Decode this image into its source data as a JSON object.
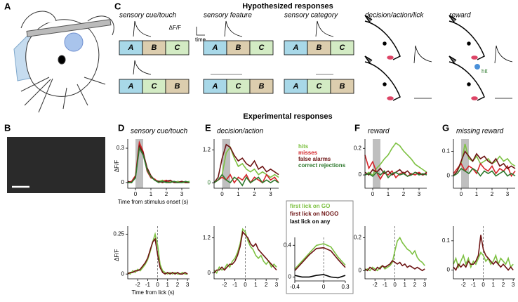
{
  "panels": [
    "A",
    "B",
    "C",
    "D",
    "E",
    "F",
    "G"
  ],
  "headings": {
    "hypothesized": "Hypothesized responses",
    "experimental": "Experimental responses"
  },
  "panel_c": {
    "columns": [
      "sensory cue/touch",
      "sensory feature",
      "sensory category",
      "decision/action/lick",
      "reward"
    ],
    "rows": [
      [
        "A",
        "B",
        "C"
      ],
      [
        "A",
        "C",
        "B"
      ]
    ],
    "dff": "ΔF/F",
    "time": "time",
    "hit": "hit"
  },
  "legend_title_series": [
    "hits",
    "misses",
    "false alarms",
    "correct rejections"
  ],
  "chart_data": [
    {
      "type": "line",
      "title": "sensory cue/touch",
      "ylabel": "ΔF/F",
      "xlabel": "Time from stimulus onset (s)",
      "xlim": [
        -0.5,
        3.5
      ],
      "ylim": [
        -0.05,
        0.38
      ],
      "xticks": [
        0,
        1,
        2,
        3
      ],
      "yticks": [
        0,
        0.3
      ],
      "shade": [
        0,
        0.5
      ],
      "x": [
        -0.5,
        -0.25,
        0,
        0.25,
        0.5,
        0.75,
        1,
        1.25,
        1.5,
        1.75,
        2,
        2.25,
        2.5,
        2.75,
        3,
        3.25,
        3.5
      ],
      "series": [
        {
          "color": "#7dc142",
          "values": [
            0,
            0,
            0.05,
            0.33,
            0.25,
            0.12,
            0.05,
            0.02,
            0.01,
            0.02,
            0,
            0.01,
            0,
            0.01,
            0,
            0,
            0.01
          ]
        },
        {
          "color": "#d4252a",
          "values": [
            0,
            0.01,
            0.06,
            0.35,
            0.27,
            0.1,
            0.04,
            0.03,
            0,
            0.01,
            0.02,
            0,
            0.01,
            0,
            0.01,
            0,
            0
          ]
        },
        {
          "color": "#6d1414",
          "values": [
            0.01,
            0,
            0.05,
            0.32,
            0.26,
            0.13,
            0.06,
            0.02,
            0.01,
            0,
            0.01,
            0.02,
            0,
            0,
            0.01,
            0,
            0
          ]
        },
        {
          "color": "#2f7a2e",
          "values": [
            0,
            0,
            0.04,
            0.3,
            0.24,
            0.11,
            0.05,
            0.02,
            0,
            0.01,
            0,
            0,
            0.01,
            0,
            0,
            0.01,
            0
          ]
        }
      ]
    },
    {
      "type": "line",
      "title": "decision/action",
      "xlim": [
        -0.5,
        3.5
      ],
      "ylim": [
        -0.2,
        1.6
      ],
      "xticks": [
        0,
        1,
        2,
        3
      ],
      "yticks": [
        0,
        1.2
      ],
      "shade": [
        0,
        0.5
      ],
      "x": [
        -0.5,
        -0.25,
        0,
        0.25,
        0.5,
        0.75,
        1,
        1.25,
        1.5,
        1.75,
        2,
        2.25,
        2.5,
        2.75,
        3,
        3.25,
        3.5
      ],
      "series": [
        {
          "name": "hits",
          "color": "#7dc142",
          "values": [
            0,
            0.1,
            0.3,
            1.1,
            1.3,
            0.9,
            0.6,
            0.7,
            0.5,
            0.4,
            0.5,
            0.3,
            0.4,
            0.3,
            0.2,
            0.3,
            0.2
          ]
        },
        {
          "name": "misses",
          "color": "#d4252a",
          "values": [
            0,
            0.1,
            0.2,
            0.1,
            0.3,
            0,
            0.2,
            0.1,
            0.3,
            0,
            0.2,
            0.1,
            0,
            0.3,
            0.1,
            0.2,
            0
          ]
        },
        {
          "name": "false alarms",
          "color": "#6d1414",
          "values": [
            0,
            0.2,
            0.9,
            1.4,
            1.3,
            1.0,
            0.8,
            0.9,
            0.7,
            0.6,
            0.8,
            0.5,
            0.6,
            0.4,
            0.5,
            0.4,
            0.3
          ]
        },
        {
          "name": "correct rejections",
          "color": "#2f7a2e",
          "values": [
            0,
            0.1,
            0.3,
            0.1,
            0,
            0.2,
            0.1,
            -0.1,
            0.2,
            0,
            0.1,
            0.2,
            0,
            0.1,
            0,
            0.1,
            0
          ]
        }
      ]
    },
    {
      "type": "line",
      "title": "reward",
      "xlim": [
        -0.5,
        3.5
      ],
      "ylim": [
        -0.1,
        0.27
      ],
      "xticks": [
        0,
        1,
        2,
        3
      ],
      "yticks": [
        0,
        0.2
      ],
      "shade": [
        0,
        0.5
      ],
      "x": [
        -0.5,
        -0.25,
        0,
        0.25,
        0.5,
        0.75,
        1,
        1.25,
        1.5,
        1.75,
        2,
        2.25,
        2.5,
        2.75,
        3,
        3.25,
        3.5
      ],
      "series": [
        {
          "color": "#7dc142",
          "values": [
            0,
            0.02,
            0,
            0.05,
            0.08,
            0.12,
            0.15,
            0.2,
            0.24,
            0.22,
            0.18,
            0.15,
            0.12,
            0.08,
            0.06,
            0.04,
            0.02
          ]
        },
        {
          "color": "#d4252a",
          "values": [
            0.15,
            0.05,
            0.1,
            0.02,
            -0.03,
            0.02,
            0,
            0.03,
            -0.02,
            0.01,
            0.02,
            -0.01,
            0.01,
            0,
            0.02,
            0,
            0.01
          ]
        },
        {
          "color": "#6d1414",
          "values": [
            0.02,
            0,
            0.04,
            0.02,
            0.05,
            0.01,
            0.03,
            0,
            0.02,
            0.04,
            0.01,
            0.03,
            0,
            0.02,
            0.01,
            0,
            0.02
          ]
        },
        {
          "color": "#2f7a2e",
          "values": [
            0,
            0.01,
            -0.01,
            0.02,
            0,
            0.03,
            -0.02,
            0.01,
            0.02,
            0,
            0.01,
            -0.01,
            0,
            0.02,
            0,
            0.01,
            0
          ]
        }
      ]
    },
    {
      "type": "line",
      "title": "missing reward",
      "xlim": [
        -0.5,
        3.5
      ],
      "ylim": [
        -0.05,
        0.15
      ],
      "xticks": [
        0,
        1,
        2,
        3
      ],
      "yticks": [
        0,
        0.1
      ],
      "shade": [
        0,
        0.5
      ],
      "x": [
        -0.5,
        -0.25,
        0,
        0.25,
        0.5,
        0.75,
        1,
        1.25,
        1.5,
        1.75,
        2,
        2.25,
        2.5,
        2.75,
        3,
        3.25,
        3.5
      ],
      "series": [
        {
          "color": "#7dc142",
          "values": [
            0,
            0.02,
            0.05,
            0.13,
            0.07,
            0.06,
            0.08,
            0.05,
            0.06,
            0.07,
            0.05,
            0.06,
            0.08,
            0.06,
            0.07,
            0.05,
            0.04
          ]
        },
        {
          "color": "#d4252a",
          "values": [
            0.01,
            0.03,
            0.05,
            0.02,
            0.04,
            0.03,
            0.01,
            0.05,
            0.03,
            0.02,
            0.04,
            0.01,
            0.03,
            0.02,
            0.04,
            0,
            0.02
          ]
        },
        {
          "color": "#6d1414",
          "values": [
            0,
            0.02,
            0.06,
            0.1,
            0.08,
            0.06,
            0.09,
            0.07,
            0.08,
            0.06,
            0.05,
            0.07,
            0.04,
            0.05,
            0.03,
            0.04,
            0.03
          ]
        },
        {
          "color": "#2f7a2e",
          "values": [
            0,
            0.01,
            0.03,
            0.02,
            0.01,
            0.03,
            0.02,
            0,
            0.02,
            0.01,
            0.02,
            0,
            0.01,
            0.02,
            0,
            0.01,
            0
          ]
        }
      ]
    },
    {
      "type": "line",
      "ylabel": "ΔF/F",
      "xlabel": "Time from lick (s)",
      "xlim": [
        -3,
        3.2
      ],
      "ylim": [
        -0.03,
        0.3
      ],
      "xticks": [
        -2,
        -1,
        0,
        1,
        2,
        3
      ],
      "yticks": [
        0,
        0.25
      ],
      "vline": 0,
      "x": [
        -3,
        -2.75,
        -2.5,
        -2.25,
        -2,
        -1.75,
        -1.5,
        -1.25,
        -1,
        -0.75,
        -0.5,
        -0.25,
        0,
        0.25,
        0.5,
        0.75,
        1,
        1.25,
        1.5,
        1.75,
        2,
        2.25,
        2.5,
        2.75,
        3
      ],
      "series": [
        {
          "color": "#7dc142",
          "values": [
            0.01,
            0,
            0.02,
            0.01,
            0.03,
            0.02,
            0.04,
            0.06,
            0.09,
            0.14,
            0.2,
            0.25,
            0.18,
            0.06,
            0.02,
            0.01,
            0,
            0.01,
            0,
            0.01,
            0,
            0,
            0.01,
            0,
            0
          ]
        },
        {
          "color": "#6d1414",
          "values": [
            0,
            0.01,
            0.01,
            0.02,
            0.02,
            0.03,
            0.05,
            0.07,
            0.1,
            0.15,
            0.2,
            0.22,
            0.12,
            0.04,
            0.01,
            0,
            0.01,
            0,
            0.01,
            0,
            0.01,
            0,
            0,
            0.01,
            0
          ]
        }
      ]
    },
    {
      "type": "line",
      "xlim": [
        -3,
        3.2
      ],
      "ylim": [
        -0.2,
        1.6
      ],
      "xticks": [
        -2,
        -1,
        0,
        1,
        2,
        3
      ],
      "yticks": [
        0,
        1.2
      ],
      "vline": 0,
      "x": [
        -3,
        -2.75,
        -2.5,
        -2.25,
        -2,
        -1.75,
        -1.5,
        -1.25,
        -1,
        -0.75,
        -0.5,
        -0.25,
        0,
        0.25,
        0.5,
        0.75,
        1,
        1.25,
        1.5,
        1.75,
        2,
        2.25,
        2.5,
        2.75,
        3
      ],
      "series": [
        {
          "color": "#7dc142",
          "values": [
            0.1,
            0,
            0.2,
            0.1,
            0.15,
            0.3,
            0.2,
            0.4,
            0.5,
            0.7,
            1.0,
            1.5,
            1.4,
            1.1,
            0.9,
            0.8,
            0.6,
            0.5,
            0.6,
            0.4,
            0.3,
            0.4,
            0.2,
            0.3,
            0.2
          ]
        },
        {
          "color": "#6d1414",
          "values": [
            0,
            0.1,
            0.1,
            0.2,
            0.1,
            0.2,
            0.3,
            0.3,
            0.4,
            0.6,
            0.9,
            1.4,
            1.3,
            1.2,
            1.0,
            0.9,
            1.0,
            0.8,
            0.7,
            0.6,
            0.5,
            0.4,
            0.3,
            0.2,
            0.1
          ]
        }
      ]
    },
    {
      "type": "line",
      "xlim": [
        -0.4,
        0.3
      ],
      "ylim": [
        -0.05,
        0.5
      ],
      "xticks": [
        -0.4,
        0,
        0.3
      ],
      "yticks": [
        0,
        0.4
      ],
      "vline": 0,
      "x": [
        -0.4,
        -0.3,
        -0.2,
        -0.1,
        0,
        0.1,
        0.2,
        0.3
      ],
      "series": [
        {
          "name": "first lick on GO",
          "color": "#7dc142",
          "values": [
            0.1,
            0.2,
            0.3,
            0.4,
            0.42,
            0.38,
            0.25,
            0.15
          ]
        },
        {
          "name": "first lick on NOGO",
          "color": "#6d1414",
          "values": [
            0.08,
            0.18,
            0.28,
            0.36,
            0.37,
            0.33,
            0.22,
            0.12
          ]
        },
        {
          "name": "last lick on any",
          "color": "#000000",
          "values": [
            0.02,
            0,
            0,
            0.02,
            0.03,
            0,
            -0.01,
            0.02
          ]
        }
      ]
    },
    {
      "type": "line",
      "xlim": [
        -3,
        3.2
      ],
      "ylim": [
        -0.05,
        0.27
      ],
      "xticks": [
        -2,
        -1,
        0,
        1,
        2,
        3
      ],
      "yticks": [
        0,
        0.2
      ],
      "vline": 0,
      "x": [
        -3,
        -2.75,
        -2.5,
        -2.25,
        -2,
        -1.75,
        -1.5,
        -1.25,
        -1,
        -0.75,
        -0.5,
        -0.25,
        0,
        0.25,
        0.5,
        0.75,
        1,
        1.25,
        1.5,
        1.75,
        2,
        2.25,
        2.5,
        2.75,
        3
      ],
      "series": [
        {
          "color": "#7dc142",
          "values": [
            0,
            0.01,
            0,
            0.02,
            0.01,
            0,
            0.02,
            0.03,
            0.01,
            0.02,
            0.03,
            0.05,
            0.12,
            0.18,
            0.2,
            0.17,
            0.15,
            0.13,
            0.12,
            0.1,
            0.12,
            0.08,
            0.06,
            0.05,
            0.03
          ]
        },
        {
          "color": "#6d1414",
          "values": [
            0.01,
            0,
            0.02,
            0.01,
            0,
            0.02,
            0.01,
            0.03,
            0.02,
            0.03,
            0.04,
            0.06,
            0.05,
            0.04,
            0.05,
            0.03,
            0.04,
            0.02,
            0.03,
            0.02,
            0.01,
            0.02,
            0.01,
            0,
            0.01
          ]
        }
      ]
    },
    {
      "type": "line",
      "xlim": [
        -3,
        3.2
      ],
      "ylim": [
        -0.03,
        0.15
      ],
      "xticks": [
        -2,
        -1,
        0,
        1,
        2,
        3
      ],
      "yticks": [
        0,
        0.1
      ],
      "vline": 0,
      "x": [
        -3,
        -2.75,
        -2.5,
        -2.25,
        -2,
        -1.75,
        -1.5,
        -1.25,
        -1,
        -0.75,
        -0.5,
        -0.25,
        0,
        0.25,
        0.5,
        0.75,
        1,
        1.25,
        1.5,
        1.75,
        2,
        2.25,
        2.5,
        2.75,
        3
      ],
      "series": [
        {
          "color": "#7dc142",
          "values": [
            0.02,
            0.04,
            0.01,
            0.03,
            0.05,
            0.02,
            0.04,
            0.01,
            0.03,
            0.02,
            0.04,
            0.06,
            0.05,
            0.03,
            0.04,
            0.02,
            0.03,
            0.05,
            0.02,
            0.04,
            0.03,
            0.02,
            0.04,
            0.01,
            0.02
          ]
        },
        {
          "color": "#6d1414",
          "values": [
            0.01,
            0,
            0.02,
            0.01,
            0.02,
            0.01,
            0.03,
            0.02,
            0.02,
            0.03,
            0.05,
            0.12,
            0.07,
            0.05,
            0.04,
            0.03,
            0.02,
            0.03,
            0.02,
            0.01,
            0.02,
            0.01,
            0,
            0.01,
            0
          ]
        }
      ]
    }
  ]
}
